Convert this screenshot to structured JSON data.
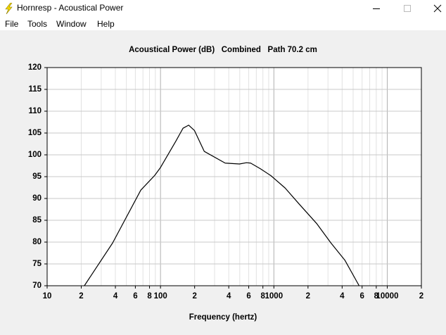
{
  "window": {
    "title": "Hornresp - Acoustical Power",
    "menu": [
      "File",
      "Tools",
      "Window",
      "Help"
    ]
  },
  "chart_data": {
    "type": "line",
    "title": "Acoustical Power (dB)   Combined   Path 70.2 cm",
    "x_label": "Frequency (hertz)",
    "x": [
      21.3,
      37.8,
      67,
      89,
      100,
      137,
      158,
      177,
      199,
      243,
      372,
      497,
      573,
      624,
      762,
      944,
      1256,
      1674,
      2395,
      3187,
      4241,
      5648
    ],
    "series": [
      {
        "color": "#000000",
        "values": [
          70,
          79.8,
          91.9,
          95.3,
          97.1,
          103.2,
          106.1,
          106.8,
          105.6,
          100.8,
          98.1,
          97.9,
          98.2,
          98.1,
          96.8,
          95.2,
          92.4,
          88.7,
          84.2,
          79.8,
          75.8,
          70
        ]
      }
    ],
    "xlim": [
      10,
      20000
    ],
    "x_log": true,
    "xticks": [
      10,
      {
        "value": 20,
        "label": "2"
      },
      {
        "value": 40,
        "label": "4"
      },
      {
        "value": 60,
        "label": "6"
      },
      {
        "value": 80,
        "label": "8"
      },
      100,
      {
        "value": 200,
        "label": "2"
      },
      {
        "value": 400,
        "label": "4"
      },
      {
        "value": 600,
        "label": "6"
      },
      {
        "value": 800,
        "label": "8"
      },
      1000,
      {
        "value": 2000,
        "label": "2"
      },
      {
        "value": 4000,
        "label": "4"
      },
      {
        "value": 6000,
        "label": "6"
      },
      {
        "value": 8000,
        "label": "8"
      },
      10000,
      {
        "value": 20000,
        "label": "2"
      }
    ],
    "ylim": [
      70,
      120
    ],
    "yticks": [
      70,
      75,
      80,
      85,
      90,
      95,
      100,
      105,
      110,
      115,
      120
    ],
    "grid": true
  }
}
